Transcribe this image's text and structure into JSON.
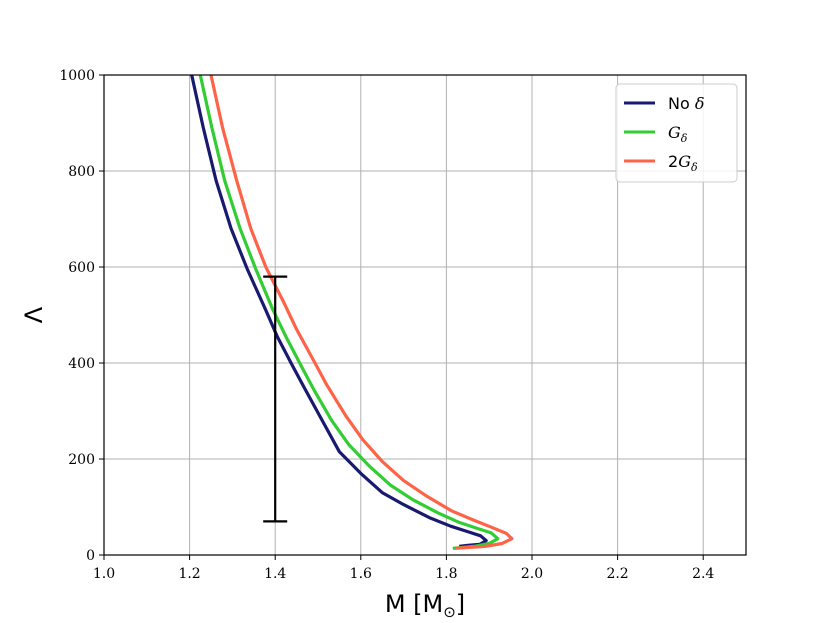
{
  "chart_data": {
    "type": "line",
    "title": "",
    "xlabel": {
      "main": "M [M",
      "sub": "⊙",
      "tail": "]"
    },
    "ylabel": "Λ",
    "xlim": [
      1.0,
      2.5
    ],
    "ylim": [
      0,
      1000
    ],
    "xticks": [
      1.0,
      1.2,
      1.4,
      1.6,
      1.8,
      2.0,
      2.2,
      2.4
    ],
    "xtick_labels": [
      "1.0",
      "1.2",
      "1.4",
      "1.6",
      "1.8",
      "2.0",
      "2.2",
      "2.4"
    ],
    "yticks": [
      0,
      200,
      400,
      600,
      800,
      1000
    ],
    "ytick_labels": [
      "0",
      "200",
      "400",
      "600",
      "800",
      "1000"
    ],
    "grid": true,
    "legend_position": "top-right",
    "series": [
      {
        "legend": {
          "main": "No ",
          "italic": "δ",
          "sub": ""
        },
        "color": "#191970",
        "points": [
          [
            1.205,
            1000
          ],
          [
            1.232,
            890
          ],
          [
            1.262,
            780
          ],
          [
            1.297,
            680
          ],
          [
            1.335,
            595
          ],
          [
            1.378,
            510
          ],
          [
            1.405,
            455
          ],
          [
            1.44,
            395
          ],
          [
            1.47,
            345
          ],
          [
            1.51,
            280
          ],
          [
            1.55,
            215
          ],
          [
            1.6,
            170
          ],
          [
            1.65,
            130
          ],
          [
            1.7,
            105
          ],
          [
            1.76,
            78
          ],
          [
            1.81,
            60
          ],
          [
            1.845,
            50
          ],
          [
            1.88,
            40
          ],
          [
            1.893,
            30
          ],
          [
            1.878,
            22
          ],
          [
            1.85,
            20
          ],
          [
            1.83,
            18
          ]
        ]
      },
      {
        "legend": {
          "main": "",
          "italic": "G",
          "sub": "δ"
        },
        "color": "#32cd32",
        "points": [
          [
            1.225,
            1000
          ],
          [
            1.252,
            890
          ],
          [
            1.282,
            780
          ],
          [
            1.318,
            680
          ],
          [
            1.355,
            595
          ],
          [
            1.395,
            510
          ],
          [
            1.425,
            455
          ],
          [
            1.46,
            395
          ],
          [
            1.49,
            345
          ],
          [
            1.532,
            280
          ],
          [
            1.572,
            230
          ],
          [
            1.62,
            185
          ],
          [
            1.67,
            145
          ],
          [
            1.722,
            115
          ],
          [
            1.78,
            88
          ],
          [
            1.83,
            68
          ],
          [
            1.87,
            56
          ],
          [
            1.905,
            46
          ],
          [
            1.92,
            34
          ],
          [
            1.9,
            24
          ],
          [
            1.865,
            18
          ],
          [
            1.815,
            14
          ]
        ]
      },
      {
        "legend": {
          "main": "2",
          "italic": "G",
          "sub": "δ"
        },
        "color": "#ff6347",
        "points": [
          [
            1.25,
            1000
          ],
          [
            1.277,
            890
          ],
          [
            1.31,
            780
          ],
          [
            1.343,
            680
          ],
          [
            1.378,
            600
          ],
          [
            1.418,
            530
          ],
          [
            1.45,
            470
          ],
          [
            1.49,
            405
          ],
          [
            1.52,
            355
          ],
          [
            1.565,
            290
          ],
          [
            1.605,
            240
          ],
          [
            1.65,
            195
          ],
          [
            1.7,
            155
          ],
          [
            1.755,
            122
          ],
          [
            1.812,
            92
          ],
          [
            1.865,
            72
          ],
          [
            1.905,
            58
          ],
          [
            1.94,
            45
          ],
          [
            1.953,
            34
          ],
          [
            1.93,
            24
          ],
          [
            1.89,
            18
          ],
          [
            1.82,
            14
          ]
        ]
      }
    ],
    "error_bar": {
      "x": 1.4,
      "y_low": 70,
      "y_high": 580,
      "color": "#000000"
    }
  }
}
